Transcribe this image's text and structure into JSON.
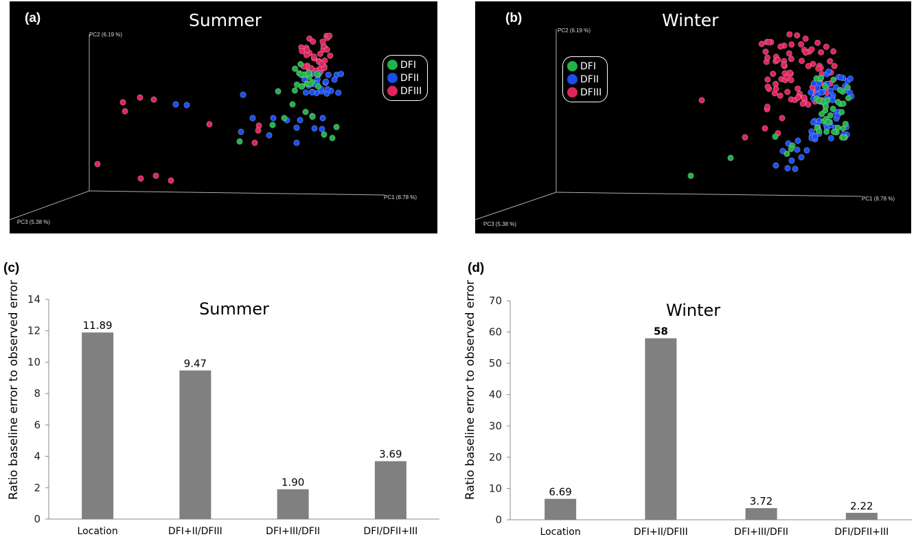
{
  "colors": {
    "DFI": "#21b24a",
    "DFII": "#1a4ef0",
    "DFIII": "#e0245e",
    "bar": "#808080"
  },
  "pcoa": {
    "legend": [
      {
        "key": "DFI",
        "label": "DFI",
        "color": "#21b24a"
      },
      {
        "key": "DFII",
        "label": "DFII",
        "color": "#1a4ef0"
      },
      {
        "key": "DFIII",
        "label": "DFIII",
        "color": "#e0245e"
      }
    ],
    "axes": {
      "pc1": "PC1 (8.78 %)",
      "pc2": "PC2 (6.19 %)",
      "pc3": "PC3 (5.38 %)"
    }
  },
  "panels": {
    "a": {
      "label": "(a)",
      "title": "Summer"
    },
    "b": {
      "label": "(b)",
      "title": "Winter"
    },
    "c": {
      "label": "(c)",
      "title": "Summer"
    },
    "d": {
      "label": "(d)",
      "title": "Winter"
    }
  },
  "chart_data": [
    {
      "panel": "a",
      "type": "scatter",
      "title": "Summer",
      "xlabel": "PC1 (8.78 %)",
      "ylabel": "PC2 (6.19 %)",
      "zlabel": "PC3 (5.38 %)",
      "legend": [
        "DFI",
        "DFII",
        "DFIII"
      ],
      "legend_position": "top-right",
      "background": "#000000"
    },
    {
      "panel": "b",
      "type": "scatter",
      "title": "Winter",
      "xlabel": "PC1 (8.78 %)",
      "ylabel": "PC2 (6.19 %)",
      "zlabel": "PC3 (5.38 %)",
      "legend": [
        "DFI",
        "DFII",
        "DFIII"
      ],
      "legend_position": "top-left",
      "background": "#000000"
    },
    {
      "panel": "c",
      "type": "bar",
      "title": "Summer",
      "categories": [
        "Location",
        "DFI+II/DFIII",
        "DFI+III/DFII",
        "DFI/DFII+III"
      ],
      "values": [
        11.89,
        9.47,
        1.9,
        3.69
      ],
      "value_labels": [
        "11.89",
        "9.47",
        "1.90",
        "3.69"
      ],
      "xlabel": "",
      "ylabel": "Ratio baseline error to observed error",
      "ylim": [
        0,
        14
      ],
      "yticks": [
        0,
        2,
        4,
        6,
        8,
        10,
        12,
        14
      ],
      "grid": false
    },
    {
      "panel": "d",
      "type": "bar",
      "title": "Winter",
      "categories": [
        "Location",
        "DFI+II/DFIII",
        "DFI+III/DFII",
        "DFI/DFII+III"
      ],
      "values": [
        6.69,
        58,
        3.72,
        2.22
      ],
      "value_labels": [
        "6.69",
        "58",
        "3.72",
        "2.22"
      ],
      "xlabel": "",
      "ylabel": "Ratio baseline error to observed error",
      "ylim": [
        0,
        70
      ],
      "yticks": [
        0,
        10,
        20,
        30,
        40,
        50,
        60,
        70
      ],
      "grid": false
    }
  ]
}
